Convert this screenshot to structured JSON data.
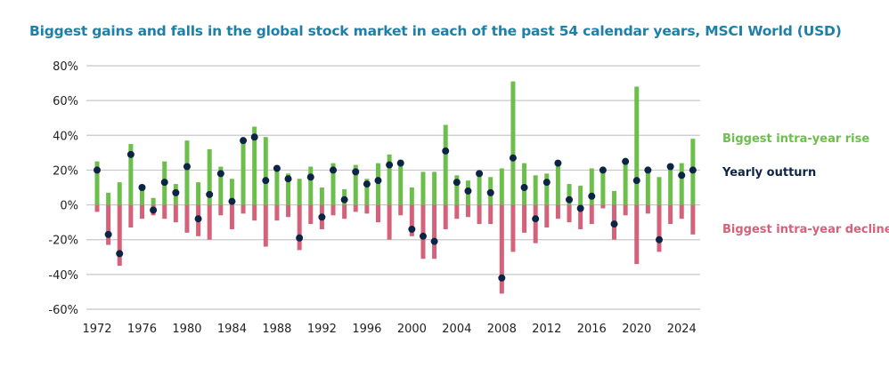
{
  "chart_data": {
    "type": "bar",
    "title": "Biggest gains and falls in the global stock market in each of the past 54 calendar years, MSCI World (USD)",
    "xlabel": "",
    "ylabel": "",
    "ylim": [
      -60,
      80
    ],
    "yticks": [
      80,
      60,
      40,
      20,
      0,
      -20,
      -40,
      -60
    ],
    "ytick_labels": [
      "80%",
      "60%",
      "40%",
      "20%",
      "0%",
      "-20%",
      "-40%",
      "-60%"
    ],
    "xtick_labels": [
      "1972",
      "1976",
      "1980",
      "1984",
      "1988",
      "1992",
      "1996",
      "2000",
      "2004",
      "2008",
      "2012",
      "2016",
      "2020",
      "2024"
    ],
    "grid": true,
    "legend_placement": "right",
    "colors": {
      "rise": "#6dbf4b",
      "decline": "#d4627a",
      "outturn": "#0d2447"
    },
    "x": [
      1972,
      1973,
      1974,
      1975,
      1976,
      1977,
      1978,
      1979,
      1980,
      1981,
      1982,
      1983,
      1984,
      1985,
      1986,
      1987,
      1988,
      1989,
      1990,
      1991,
      1992,
      1993,
      1994,
      1995,
      1996,
      1997,
      1998,
      1999,
      2000,
      2001,
      2002,
      2003,
      2004,
      2005,
      2006,
      2007,
      2008,
      2009,
      2010,
      2011,
      2012,
      2013,
      2014,
      2015,
      2016,
      2017,
      2018,
      2019,
      2020,
      2021,
      2022,
      2023,
      2024,
      2025
    ],
    "series": [
      {
        "name": "Biggest intra-year rise",
        "values": [
          25,
          7,
          13,
          35,
          10,
          4,
          25,
          12,
          37,
          13,
          32,
          22,
          15,
          37,
          45,
          39,
          21,
          18,
          15,
          22,
          10,
          24,
          9,
          23,
          15,
          24,
          29,
          26,
          10,
          19,
          19,
          46,
          17,
          14,
          20,
          16,
          21,
          71,
          24,
          17,
          18,
          24,
          12,
          11,
          21,
          20,
          8,
          25,
          68,
          20,
          16,
          21,
          24,
          38
        ]
      },
      {
        "name": "Yearly outturn",
        "values": [
          20,
          -17,
          -28,
          29,
          10,
          -3,
          13,
          7,
          22,
          -8,
          6,
          18,
          2,
          37,
          39,
          14,
          21,
          15,
          -19,
          16,
          -7,
          20,
          3,
          19,
          12,
          14,
          23,
          24,
          -14,
          -18,
          -21,
          31,
          13,
          8,
          18,
          7,
          -42,
          27,
          10,
          -8,
          13,
          24,
          3,
          -2,
          5,
          20,
          -11,
          25,
          14,
          20,
          -20,
          22,
          17,
          20
        ]
      },
      {
        "name": "Biggest intra-year decline",
        "values": [
          -4,
          -23,
          -35,
          -13,
          -8,
          -6,
          -8,
          -10,
          -16,
          -18,
          -20,
          -6,
          -14,
          -5,
          -9,
          -24,
          -9,
          -7,
          -26,
          -11,
          -14,
          -6,
          -8,
          -4,
          -5,
          -10,
          -20,
          -6,
          -18,
          -31,
          -31,
          -14,
          -8,
          -7,
          -11,
          -11,
          -51,
          -27,
          -16,
          -22,
          -13,
          -8,
          -10,
          -14,
          -11,
          -2,
          -20,
          -6,
          -34,
          -5,
          -27,
          -11,
          -8,
          -17
        ]
      }
    ]
  }
}
